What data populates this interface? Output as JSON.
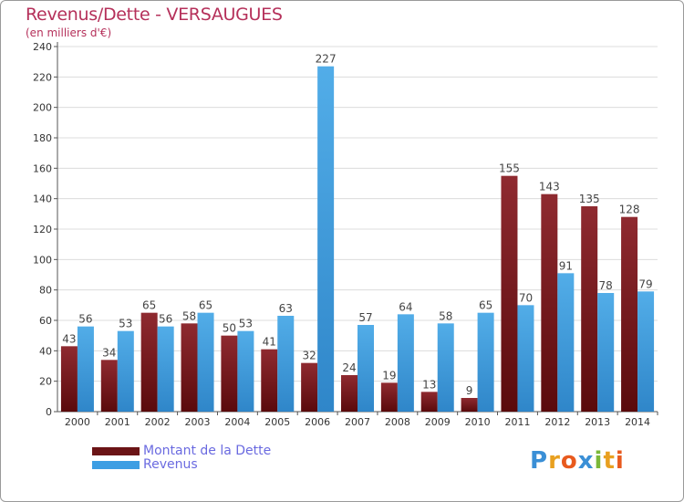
{
  "header": {
    "title": "Revenus/Dette - VERSAUGUES",
    "subtitle": "(en milliers d'€)"
  },
  "chart_data": {
    "type": "bar",
    "title": "Revenus/Dette - VERSAUGUES",
    "subtitle": "(en milliers d'€)",
    "xlabel": "",
    "ylabel": "",
    "ylim": [
      0,
      240
    ],
    "yticks": [
      0,
      20,
      40,
      60,
      80,
      100,
      120,
      140,
      160,
      180,
      200,
      220,
      240
    ],
    "grid": true,
    "legend_position": "bottom-left",
    "categories": [
      "2000",
      "2001",
      "2002",
      "2003",
      "2004",
      "2005",
      "2006",
      "2007",
      "2008",
      "2009",
      "2010",
      "2011",
      "2012",
      "2013",
      "2014"
    ],
    "series": [
      {
        "name": "Montant de la Dette",
        "color": "#7a1f25",
        "values": [
          43,
          34,
          65,
          58,
          50,
          41,
          32,
          24,
          19,
          13,
          9,
          155,
          143,
          135,
          128
        ]
      },
      {
        "name": "Revenus",
        "color": "#3d9ee3",
        "values": [
          56,
          53,
          56,
          65,
          53,
          63,
          227,
          57,
          64,
          58,
          65,
          70,
          91,
          78,
          79
        ]
      }
    ]
  },
  "legend": {
    "items": [
      {
        "label": "Montant de la Dette",
        "color": "#6b1416"
      },
      {
        "label": "Revenus",
        "color": "#3d9ee3"
      }
    ]
  },
  "logo": {
    "letters": [
      "P",
      "r",
      "o",
      "x",
      "i",
      "t",
      "i"
    ],
    "colors": [
      "#3a8fd6",
      "#e8a020",
      "#e85a1e",
      "#3a8fd6",
      "#7ab83a",
      "#e8a020",
      "#e85a1e"
    ]
  }
}
